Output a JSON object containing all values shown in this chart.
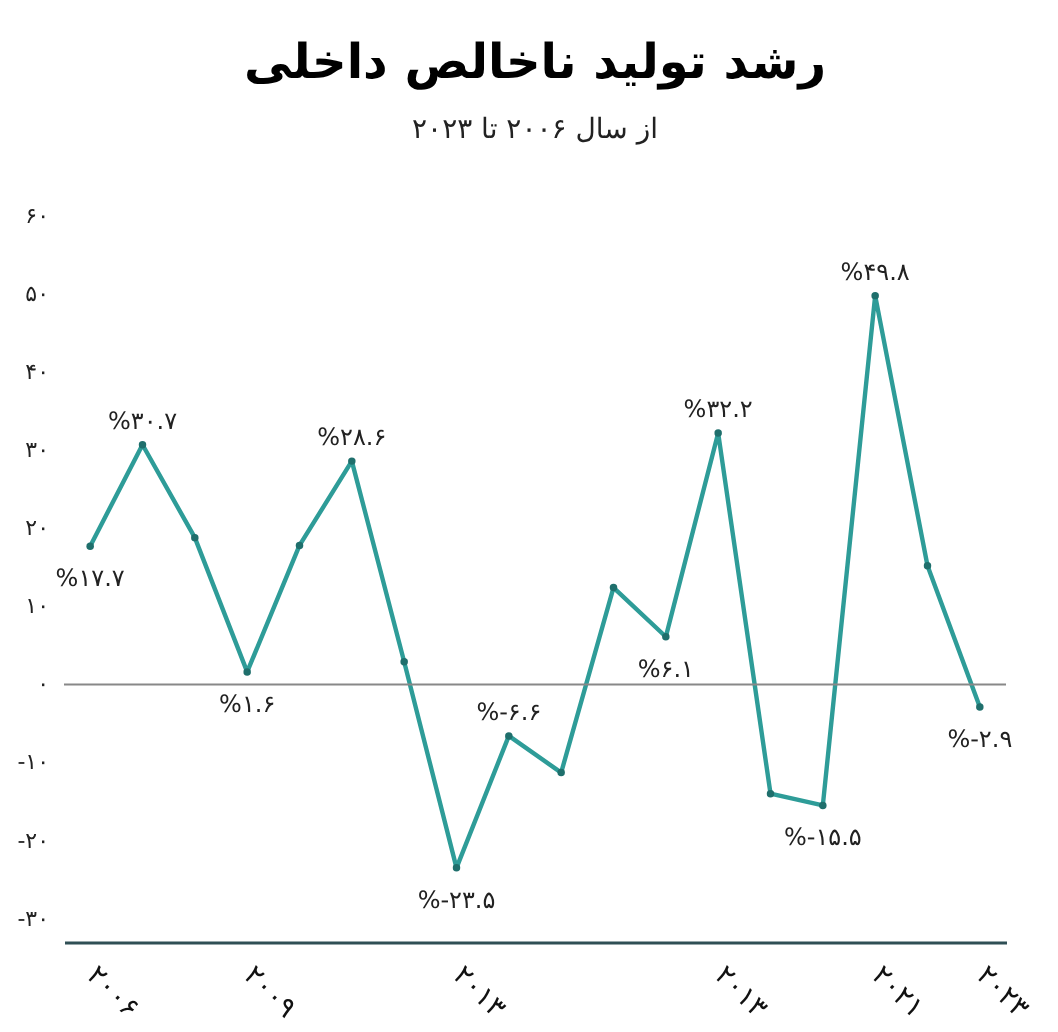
{
  "chart_data": {
    "type": "line",
    "title": "رشد تولید ناخالص داخلی",
    "subtitle": "از سال ۲۰۰۶ تا ۲۰۲۳",
    "categories": [
      "۲۰۰۶",
      null,
      null,
      "۲۰۰۹",
      null,
      null,
      null,
      "۲۰۱۳",
      null,
      null,
      null,
      null,
      "۲۰۱۳",
      null,
      null,
      "۲۰۲۱",
      null,
      "۲۰۲۳"
    ],
    "values": [
      17.7,
      30.7,
      18.8,
      1.6,
      17.8,
      28.6,
      2.9,
      -23.5,
      -6.6,
      -11.3,
      12.4,
      6.1,
      32.2,
      -14.0,
      -15.5,
      49.8,
      15.2,
      -2.9
    ],
    "value_labels": [
      "%۱۷.۷",
      "%۳۰.۷",
      null,
      "%۱.۶",
      null,
      "%۲۸.۶",
      null,
      "%-۲۳.۵",
      "%-۶.۶",
      null,
      null,
      "%۶.۱",
      "%۳۲.۲",
      null,
      "%-۱۵.۵",
      "%۴۹.۸",
      null,
      "%-۲.۹"
    ],
    "color": "#2e9c98",
    "marker": "circle",
    "line_style": "solid",
    "grid": false,
    "ylim": [
      -33,
      60
    ],
    "yticks": [
      {
        "value": 60,
        "label": "۶۰"
      },
      {
        "value": 50,
        "label": "۵۰"
      },
      {
        "value": 40,
        "label": "۴۰"
      },
      {
        "value": 30,
        "label": "۳۰"
      },
      {
        "value": 20,
        "label": "۲۰"
      },
      {
        "value": 10,
        "label": "۱۰"
      },
      {
        "value": 0,
        "label": "۰"
      },
      {
        "value": -10,
        "label": "-۱۰"
      },
      {
        "value": -20,
        "label": "-۲۰"
      },
      {
        "value": -30,
        "label": "-۳۰"
      }
    ],
    "ref_lines": [
      {
        "axis": "y",
        "value": 0,
        "color": "#888888"
      }
    ]
  }
}
